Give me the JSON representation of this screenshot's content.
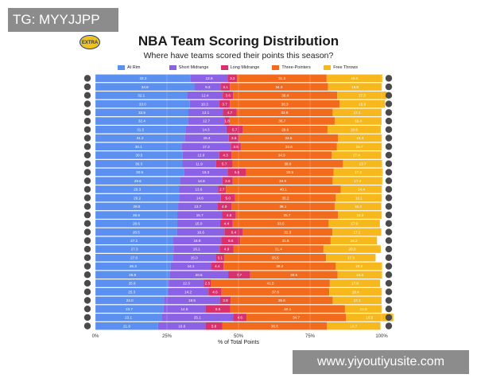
{
  "watermark_tl": "TG: MYYJJPP",
  "watermark_br": "www.yiyoutiyusite.com",
  "logo_text": "EXTRA",
  "chart_data": {
    "type": "bar",
    "orientation": "horizontal",
    "stacked": true,
    "title": "NBA Team Scoring Distribution",
    "subtitle": "Where have teams scored their points this season?",
    "xlabel": "% of Total Points",
    "xlim": [
      0,
      100
    ],
    "xticks": [
      "0%",
      "25%",
      "50%",
      "75%",
      "100%"
    ],
    "legend_position": "top",
    "grid": true,
    "series": [
      {
        "name": "At Rim",
        "color": "#5b8ff0",
        "values": [
          33.3,
          34.6,
          32.1,
          33.0,
          32.5,
          32.4,
          31.5,
          31.2,
          30.1,
          30.5,
          30.3,
          30.9,
          29.6,
          29.3,
          29.2,
          28.9,
          28.6,
          28.6,
          28.5,
          27.1,
          27.3,
          27.0,
          26.3,
          25.9,
          25.6,
          25.3,
          24.0,
          23.7,
          23.1,
          21.9
        ]
      },
      {
        "name": "Short Midrange",
        "color": "#8b62e6",
        "values": [
          12.9,
          9.3,
          12.4,
          10.3,
          12.1,
          12.7,
          14.3,
          15.4,
          17.2,
          12.8,
          11.9,
          15.3,
          14.8,
          13.6,
          14.6,
          13.7,
          15.7,
          15.0,
          16.6,
          16.9,
          16.1,
          15.0,
          14.1,
          20.5,
          12.3,
          14.2,
          19.5,
          14.8,
          25.1,
          16.6
        ]
      },
      {
        "name": "Long Midrange",
        "color": "#d8316b",
        "values": [
          3.3,
          3.1,
          3.6,
          3.7,
          4.7,
          1.8,
          5.7,
          3.6,
          3.5,
          4.3,
          5.7,
          6.5,
          3.6,
          2.7,
          5.0,
          4.9,
          4.8,
          4.4,
          6.4,
          6.6,
          4.9,
          3.1,
          4.4,
          7.7,
          2.5,
          4.6,
          3.8,
          8.6,
          4.6,
          5.8
        ]
      },
      {
        "name": "Three-Pointers",
        "color": "#f26b1d",
        "values": [
          31.3,
          34.3,
          36.4,
          38.3,
          33.6,
          36.7,
          29.6,
          34.6,
          33.6,
          34.9,
          38.6,
          30.5,
          34.9,
          40.1,
          35.2,
          36.1,
          35.7,
          33.5,
          31.3,
          31.6,
          31.4,
          35.5,
          39.2,
          30.5,
          41.5,
          37.6,
          35.6,
          40.1,
          34.7,
          36.6
        ]
      },
      {
        "name": "Free Throws",
        "color": "#f6b81c",
        "values": [
          19.5,
          18.8,
          17.3,
          15.9,
          17.1,
          16.4,
          18.6,
          15.3,
          15.7,
          17.4,
          13.7,
          17.2,
          17.4,
          14.4,
          16.1,
          16.3,
          15.3,
          17.9,
          17.1,
          16.2,
          20.0,
          17.3,
          16.2,
          15.6,
          17.6,
          18.4,
          17.1,
          12.9,
          16.6,
          18.7
        ]
      }
    ]
  }
}
